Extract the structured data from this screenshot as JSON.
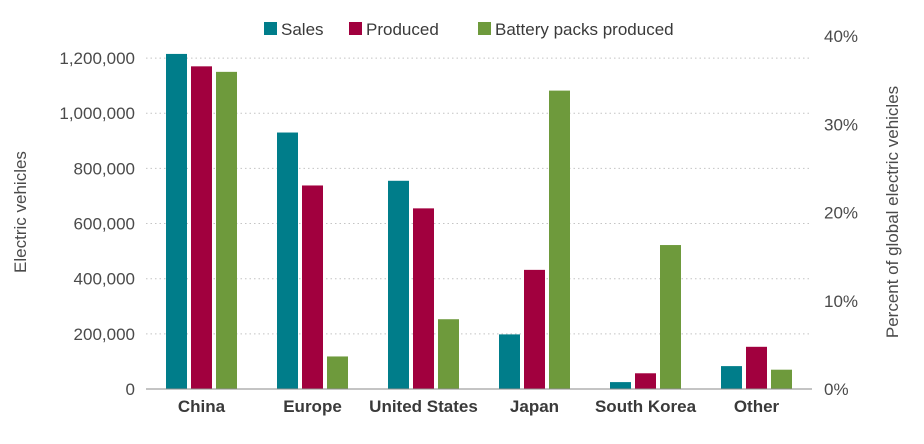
{
  "chart_data": {
    "type": "bar",
    "categories": [
      "China",
      "Europe",
      "United States",
      "Japan",
      "South Korea",
      "Other"
    ],
    "series": [
      {
        "name": "Sales",
        "color": "#007D8A",
        "values": [
          1215000,
          930000,
          755000,
          198000,
          25000,
          83000
        ]
      },
      {
        "name": "Produced",
        "color": "#A1003E",
        "values": [
          1170000,
          738000,
          655000,
          432000,
          57000,
          153000
        ]
      },
      {
        "name": "Battery packs produced",
        "color": "#6E9A3C",
        "values": [
          1150000,
          118000,
          253000,
          1082000,
          522000,
          70000
        ]
      }
    ],
    "ylabel": "Electric vehicles",
    "ylim": [
      0,
      1280000
    ],
    "yticks": [
      {
        "value": 0,
        "label": "0"
      },
      {
        "value": 200000,
        "label": "200,000"
      },
      {
        "value": 400000,
        "label": "400,000"
      },
      {
        "value": 600000,
        "label": "600,000"
      },
      {
        "value": 800000,
        "label": "800,000"
      },
      {
        "value": 1000000,
        "label": "1,000,000"
      },
      {
        "value": 1200000,
        "label": "1,200,000"
      }
    ],
    "y2label": "Percent of global electric vehicles",
    "y2ticks": [
      "0%",
      "10%",
      "20%",
      "30%",
      "40%"
    ],
    "grid": true,
    "legend_position": "top"
  }
}
